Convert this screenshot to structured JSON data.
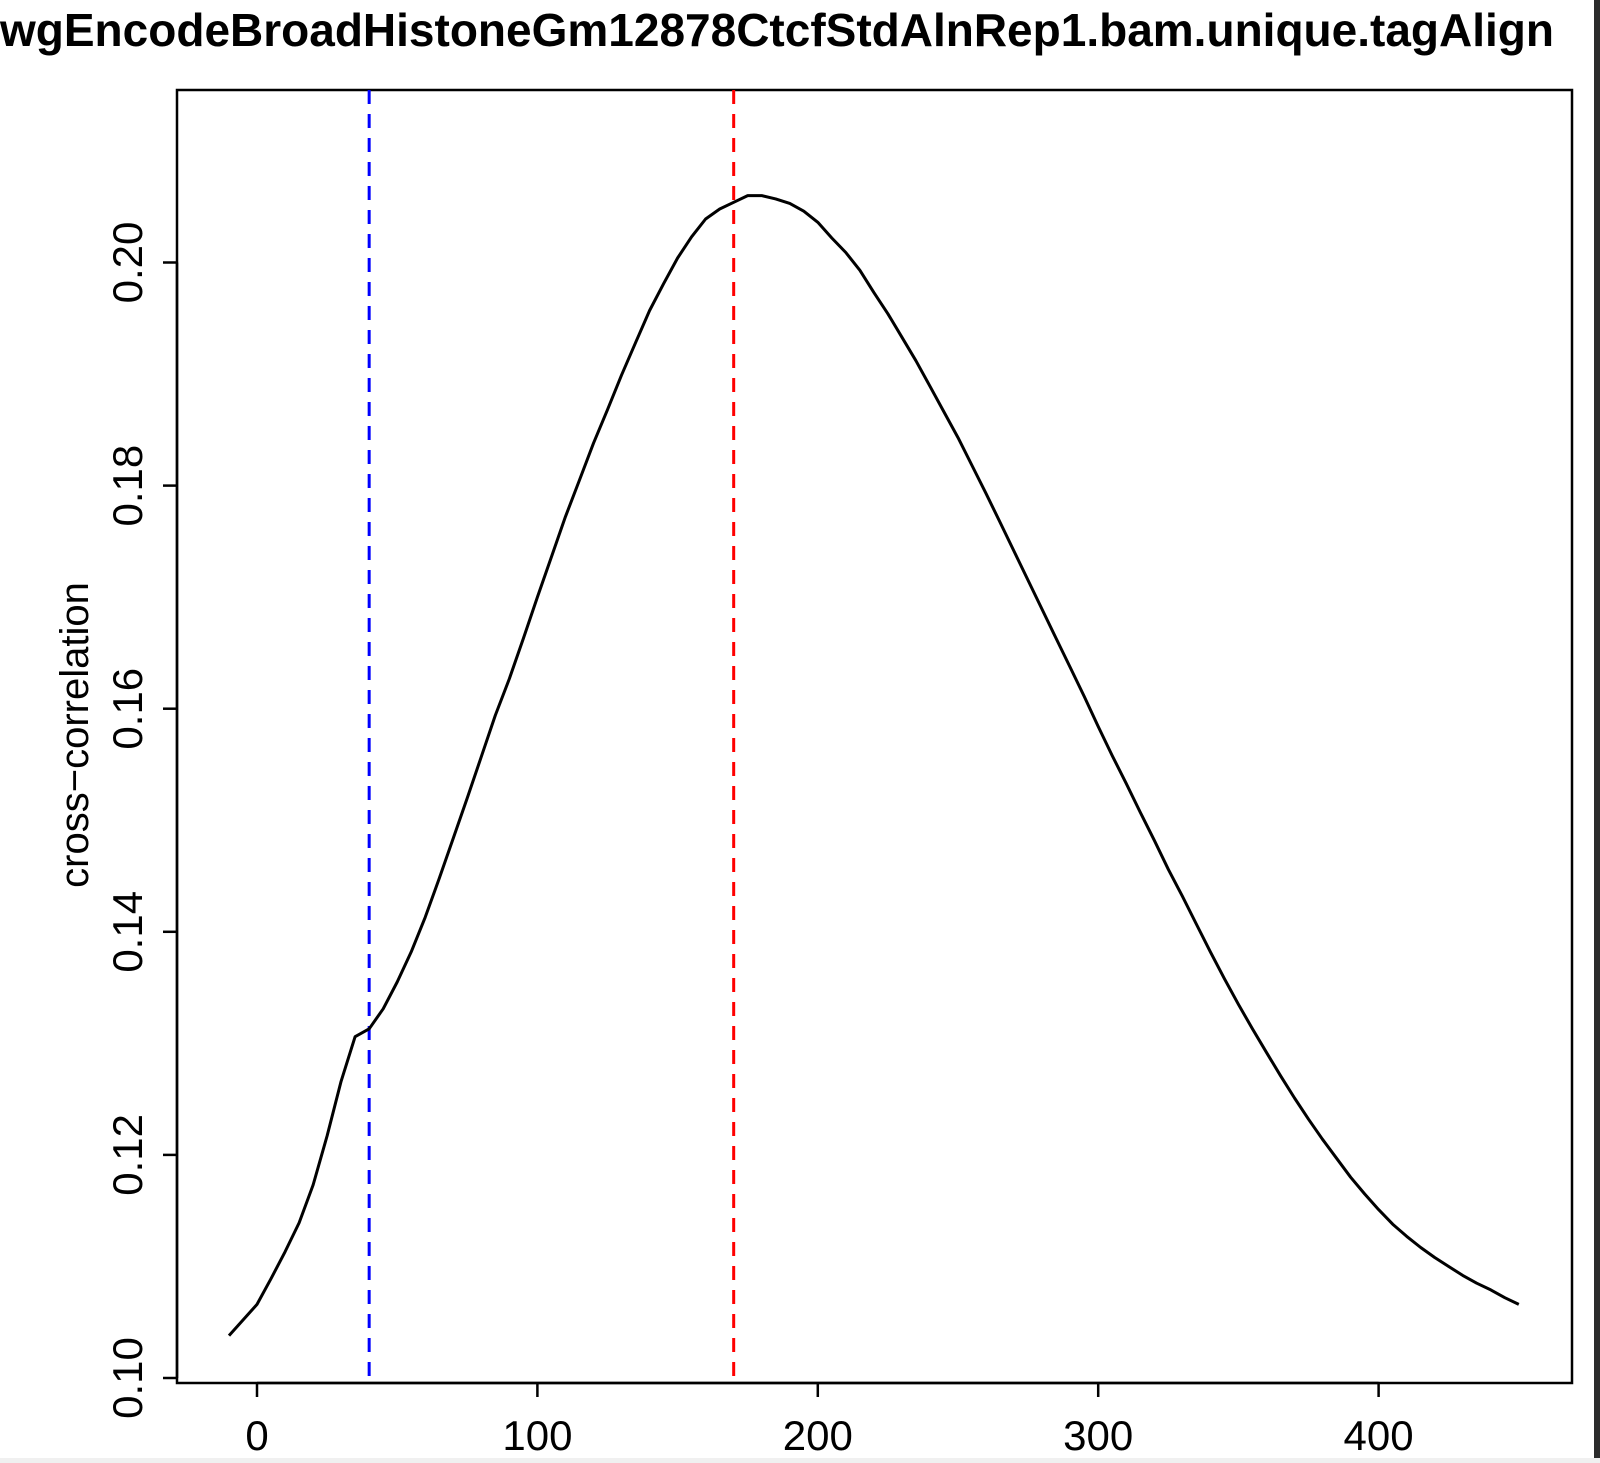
{
  "chart_data": {
    "type": "line",
    "title": "wgEncodeBroadHistoneGm12878CtcfStdAlnRep1.bam.unique.tagAlign",
    "xlabel": "",
    "ylabel": "cross−correlation",
    "xlim": [
      -10,
      450
    ],
    "ylim": [
      0.1,
      0.21
    ],
    "x_ticks": [
      0,
      100,
      200,
      300,
      400
    ],
    "x_tick_labels": [
      "0",
      "100",
      "200",
      "300",
      "400"
    ],
    "y_ticks": [
      0.1,
      0.12,
      0.14,
      0.16,
      0.18,
      0.2
    ],
    "y_tick_labels": [
      "0.10",
      "0.12",
      "0.14",
      "0.16",
      "0.18",
      "0.20"
    ],
    "grid": false,
    "series": [
      {
        "color": "#000000",
        "x": [
          -10,
          0,
          5,
          10,
          15,
          20,
          25,
          30,
          35,
          40,
          45,
          50,
          55,
          60,
          65,
          70,
          75,
          80,
          85,
          90,
          95,
          100,
          105,
          110,
          115,
          120,
          125,
          130,
          135,
          140,
          145,
          150,
          155,
          160,
          165,
          170,
          175,
          180,
          185,
          190,
          195,
          200,
          205,
          210,
          215,
          220,
          225,
          230,
          235,
          240,
          245,
          250,
          255,
          260,
          265,
          270,
          275,
          280,
          285,
          290,
          295,
          300,
          305,
          310,
          315,
          320,
          325,
          330,
          335,
          340,
          345,
          350,
          355,
          360,
          365,
          370,
          375,
          380,
          385,
          390,
          395,
          400,
          405,
          410,
          415,
          420,
          425,
          430,
          435,
          440,
          445,
          450
        ],
        "y": [
          0.1038,
          0.1066,
          0.1089,
          0.1113,
          0.1139,
          0.1173,
          0.1217,
          0.1266,
          0.1306,
          0.1313,
          0.1331,
          0.1355,
          0.1382,
          0.1413,
          0.1448,
          0.1484,
          0.152,
          0.1557,
          0.1594,
          0.1627,
          0.1663,
          0.17,
          0.1736,
          0.1772,
          0.1805,
          0.1838,
          0.1868,
          0.1899,
          0.1928,
          0.1957,
          0.1981,
          0.2004,
          0.2023,
          0.2039,
          0.2048,
          0.2054,
          0.206,
          0.206,
          0.2057,
          0.2053,
          0.2046,
          0.2036,
          0.2022,
          0.2009,
          0.1993,
          0.1973,
          0.1954,
          0.1933,
          0.1912,
          0.1889,
          0.1866,
          0.1843,
          0.1818,
          0.1793,
          0.1767,
          0.1741,
          0.1715,
          0.1689,
          0.1663,
          0.1637,
          0.1611,
          0.1584,
          0.1558,
          0.1533,
          0.1507,
          0.1482,
          0.1456,
          0.1432,
          0.1407,
          0.1382,
          0.1358,
          0.1335,
          0.1313,
          0.1292,
          0.1271,
          0.1251,
          0.1232,
          0.1214,
          0.1197,
          0.118,
          0.1165,
          0.1151,
          0.1138,
          0.1127,
          0.1117,
          0.1108,
          0.11,
          0.1092,
          0.1085,
          0.1079,
          0.1072,
          0.1066
        ]
      }
    ],
    "vlines": [
      {
        "x": 40,
        "color": "#0000ff",
        "style": "dashed"
      },
      {
        "x": 170,
        "color": "#ff0000",
        "style": "dashed"
      }
    ]
  }
}
